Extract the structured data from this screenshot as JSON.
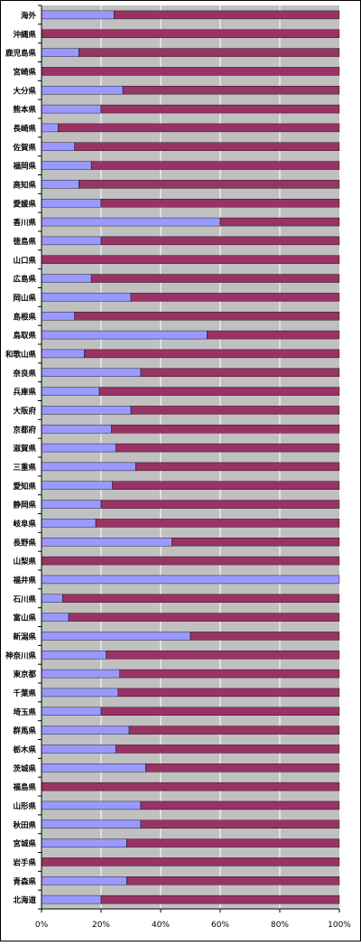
{
  "colors": {
    "plot_bg": "#c0c0c0",
    "series_a": "#9999ff",
    "series_b": "#993366",
    "grid": "#ffffff",
    "axis": "#000000",
    "text": "#000000"
  },
  "chart_data": {
    "type": "bar",
    "orientation": "horizontal",
    "stacked": true,
    "percent": true,
    "title": "",
    "xlabel": "",
    "ylabel": "",
    "xlim": [
      0,
      100
    ],
    "x_ticks": [
      "0%",
      "20%",
      "40%",
      "60%",
      "80%",
      "100%"
    ],
    "grid": true,
    "legend": "none",
    "categories": [
      "海外",
      "沖縄県",
      "鹿児島県",
      "宮崎県",
      "大分県",
      "熊本県",
      "長崎県",
      "佐賀県",
      "福岡県",
      "高知県",
      "愛媛県",
      "香川県",
      "徳島県",
      "山口県",
      "広島県",
      "岡山県",
      "島根県",
      "鳥取県",
      "和歌山県",
      "奈良県",
      "兵庫県",
      "大阪府",
      "京都府",
      "滋賀県",
      "三重県",
      "愛知県",
      "静岡県",
      "岐阜県",
      "長野県",
      "山梨県",
      "福井県",
      "石川県",
      "富山県",
      "新潟県",
      "神奈川県",
      "東京都",
      "千葉県",
      "埼玉県",
      "群馬県",
      "栃木県",
      "茨城県",
      "福島県",
      "山形県",
      "秋田県",
      "宮城県",
      "岩手県",
      "青森県",
      "北海道"
    ],
    "series": [
      {
        "values": [
          24.3,
          0,
          12.5,
          0,
          27.3,
          20,
          5.6,
          11.1,
          16.7,
          12.5,
          20,
          60,
          20,
          0,
          16.7,
          30,
          11.1,
          55.6,
          14.3,
          33.3,
          19.4,
          30,
          23.5,
          25,
          31.6,
          23.8,
          20,
          18.2,
          43.8,
          0,
          100,
          7.1,
          9.1,
          50,
          21.7,
          26.3,
          25.7,
          20,
          29.4,
          25,
          35,
          0,
          33.3,
          33.3,
          28.6,
          0,
          28.6,
          20
        ]
      },
      {
        "values": [
          75.7,
          100,
          87.5,
          100,
          72.7,
          80,
          94.4,
          88.9,
          83.3,
          87.5,
          80,
          40,
          80,
          100,
          83.3,
          70,
          88.9,
          44.4,
          85.7,
          66.7,
          80.6,
          70,
          76.5,
          75,
          68.4,
          76.2,
          80,
          81.8,
          56.2,
          100,
          0,
          92.9,
          90.9,
          50,
          78.3,
          73.7,
          74.3,
          80,
          70.6,
          75,
          65,
          100,
          66.7,
          66.7,
          71.4,
          100,
          71.4,
          80
        ]
      }
    ]
  }
}
